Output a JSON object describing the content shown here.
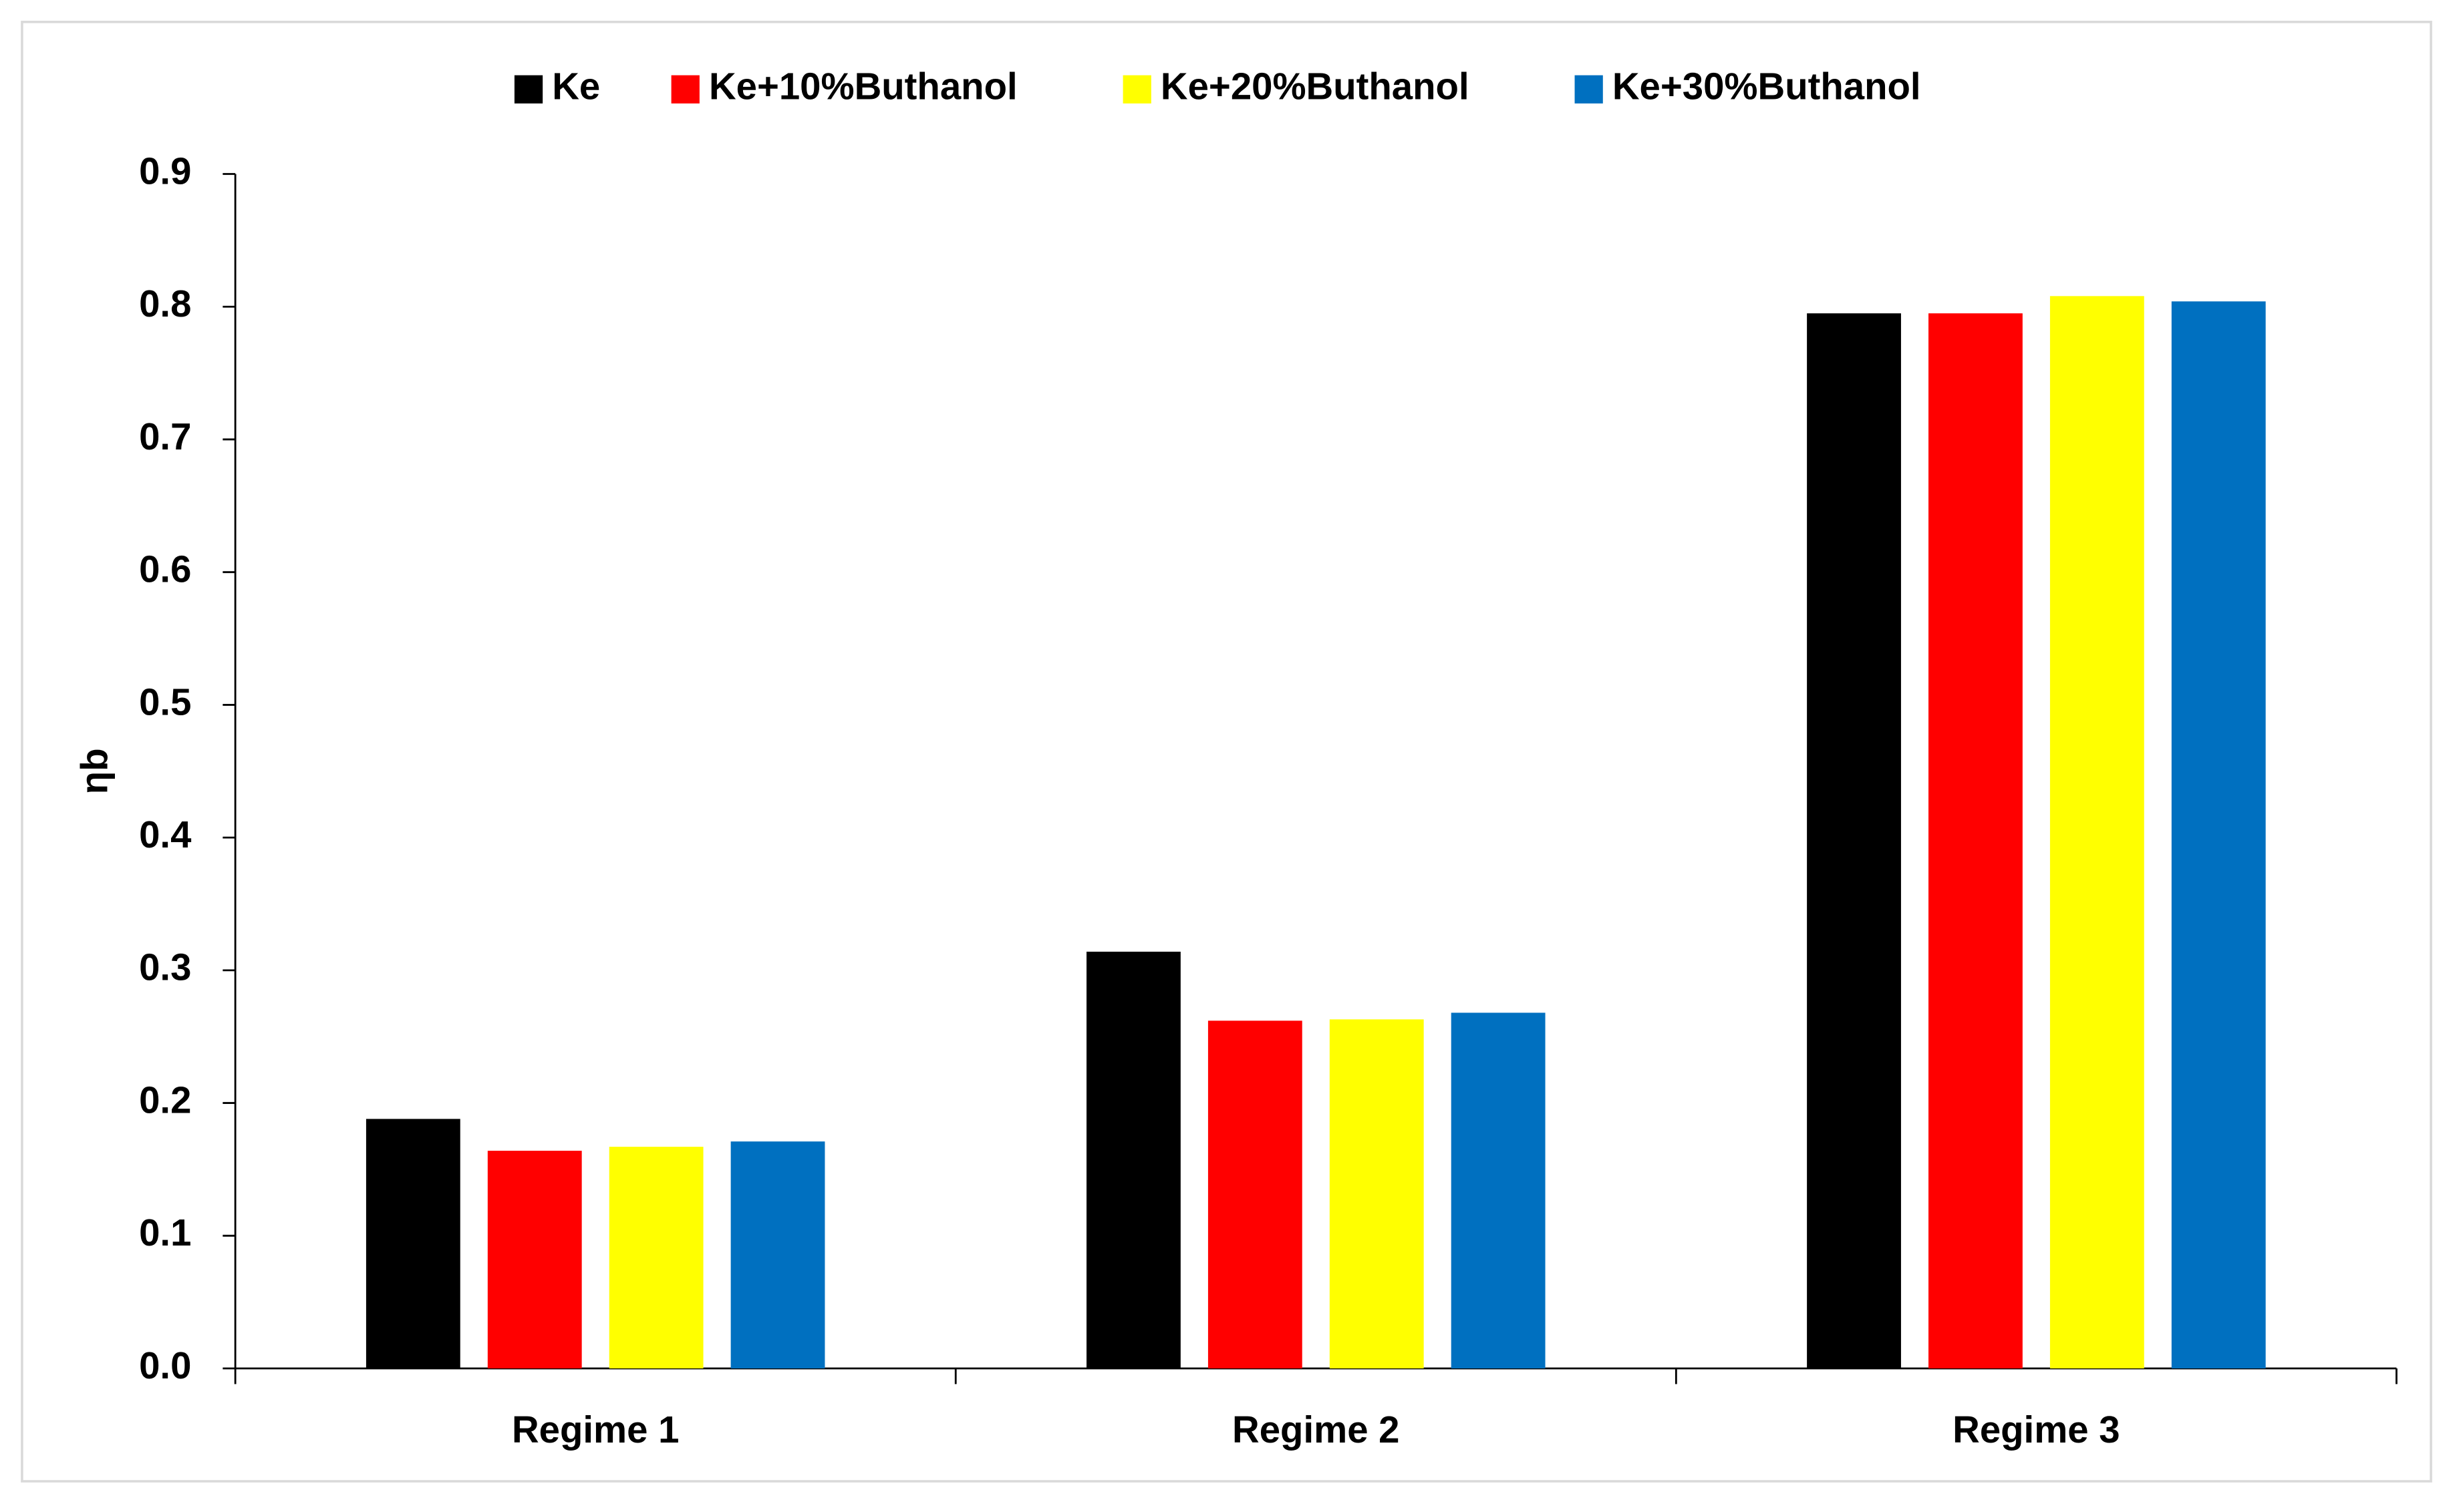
{
  "chart_data": {
    "type": "bar",
    "categories": [
      "Regime 1",
      "Regime 2",
      "Regime 3"
    ],
    "y_label": "ηb",
    "series": [
      {
        "name": "Ke",
        "color": "#000000",
        "values": [
          0.188,
          0.314,
          0.795
        ]
      },
      {
        "name": "Ke+10%Buthanol",
        "color": "#ff0000",
        "values": [
          0.164,
          0.262,
          0.795
        ]
      },
      {
        "name": "Ke+20%Buthanol",
        "color": "#ffff00",
        "values": [
          0.167,
          0.263,
          0.808
        ]
      },
      {
        "name": "Ke+30%Buthanol",
        "color": "#0070c0",
        "values": [
          0.171,
          0.268,
          0.804
        ]
      }
    ],
    "ylim": [
      0,
      0.9
    ],
    "yticks": [
      {
        "value": 0,
        "label": "0.0"
      },
      0.1,
      0.2,
      0.3,
      0.4,
      0.5,
      0.6,
      0.7,
      0.8,
      0.9
    ],
    "legend": "top",
    "grid": false
  }
}
